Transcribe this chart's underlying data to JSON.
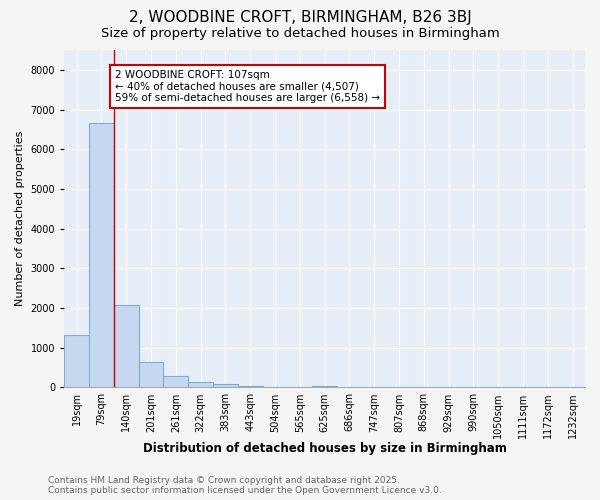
{
  "title": "2, WOODBINE CROFT, BIRMINGHAM, B26 3BJ",
  "subtitle": "Size of property relative to detached houses in Birmingham",
  "xlabel": "Distribution of detached houses by size in Birmingham",
  "ylabel": "Number of detached properties",
  "bar_labels": [
    "19sqm",
    "79sqm",
    "140sqm",
    "201sqm",
    "261sqm",
    "322sqm",
    "383sqm",
    "443sqm",
    "504sqm",
    "565sqm",
    "625sqm",
    "686sqm",
    "747sqm",
    "807sqm",
    "868sqm",
    "929sqm",
    "990sqm",
    "1050sqm",
    "1111sqm",
    "1172sqm",
    "1232sqm"
  ],
  "bar_values": [
    1320,
    6660,
    2080,
    650,
    300,
    150,
    80,
    40,
    15,
    5,
    40,
    0,
    0,
    0,
    0,
    0,
    0,
    0,
    0,
    0,
    0
  ],
  "bar_color": "#c5d8f0",
  "bar_edge_color": "#7bafd4",
  "red_line_x": 1.5,
  "annotation_text": "2 WOODBINE CROFT: 107sqm\n← 40% of detached houses are smaller (4,507)\n59% of semi-detached houses are larger (6,558) →",
  "annotation_box_color": "#ffffff",
  "annotation_border_color": "#cc0000",
  "ylim": [
    0,
    8500
  ],
  "yticks": [
    0,
    1000,
    2000,
    3000,
    4000,
    5000,
    6000,
    7000,
    8000
  ],
  "background_color": "#e8eef8",
  "grid_color": "#ffffff",
  "footer_line1": "Contains HM Land Registry data © Crown copyright and database right 2025.",
  "footer_line2": "Contains public sector information licensed under the Open Government Licence v3.0.",
  "title_fontsize": 11,
  "subtitle_fontsize": 9.5,
  "xlabel_fontsize": 8.5,
  "ylabel_fontsize": 8,
  "tick_fontsize": 7,
  "footer_fontsize": 6.5
}
